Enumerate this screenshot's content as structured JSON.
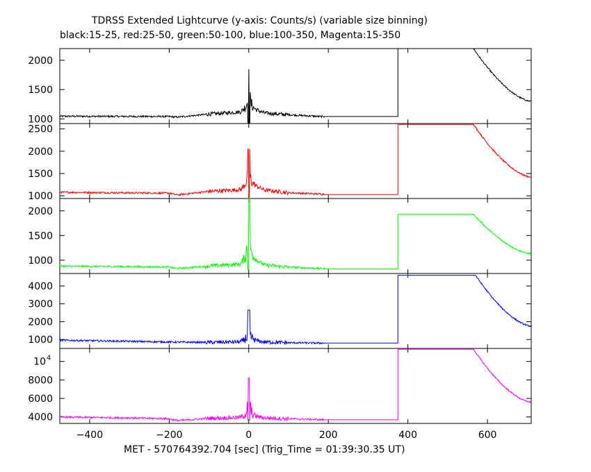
{
  "title": "TDRSS Extended Lightcurve (y-axis: Counts/s) (variable size binning)",
  "subtitle": "black:15-25, red:25-50, green:50-100, blue:100-350, Magenta:15-350",
  "xlabel": "MET - 570764392.704 [sec] (Trig_Time = 01:39:30.35 UT)",
  "chart_data": {
    "type": "line",
    "xlim": [
      -475,
      710
    ],
    "x_ticks": [
      -400,
      -200,
      0,
      200,
      400,
      600
    ],
    "panels": [
      {
        "band": "15-25",
        "color": "#000000",
        "ylim": [
          920,
          2200
        ],
        "y_ticks": [
          {
            "value": 1000,
            "label": "1000"
          },
          {
            "value": 1500,
            "label": "1500"
          },
          {
            "value": 2000,
            "label": "2000"
          }
        ],
        "baseline": [
          [
            -475,
            1045
          ],
          [
            -200,
            1040
          ],
          [
            -180,
            1030
          ],
          [
            -100,
            1080
          ],
          [
            -20,
            1120
          ],
          [
            0,
            1200
          ],
          [
            40,
            1100
          ],
          [
            100,
            1070
          ],
          [
            180,
            1040
          ]
        ],
        "step_level": 1040,
        "step_end": 375,
        "plateau_level": 2200,
        "plateau_end": 565,
        "end_value": 1300,
        "spike": {
          "peak": 1850,
          "min": 920,
          "center": 0
        }
      },
      {
        "band": "25-50",
        "color": "#ff0000",
        "ylim": [
          940,
          2620
        ],
        "y_ticks": [
          {
            "value": 1000,
            "label": "1000"
          },
          {
            "value": 1500,
            "label": "1500"
          },
          {
            "value": 2000,
            "label": "2000"
          },
          {
            "value": 2500,
            "label": "2500"
          }
        ],
        "baseline": [
          [
            -475,
            1080
          ],
          [
            -200,
            1060
          ],
          [
            -180,
            1020
          ],
          [
            -100,
            1100
          ],
          [
            -20,
            1140
          ],
          [
            0,
            1300
          ],
          [
            40,
            1130
          ],
          [
            100,
            1070
          ],
          [
            180,
            1040
          ]
        ],
        "step_level": 1030,
        "step_end": 375,
        "plateau_level": 2600,
        "plateau_end": 565,
        "end_value": 1420,
        "spike": {
          "peak": 2050,
          "min": 950,
          "center": 0
        }
      },
      {
        "band": "50-100",
        "color": "#00ff00",
        "ylim": [
          730,
          2250
        ],
        "y_ticks": [
          {
            "value": 1000,
            "label": "1000"
          },
          {
            "value": 1500,
            "label": "1500"
          },
          {
            "value": 2000,
            "label": "2000"
          }
        ],
        "baseline": [
          [
            -475,
            880
          ],
          [
            -200,
            860
          ],
          [
            -180,
            830
          ],
          [
            -100,
            880
          ],
          [
            -20,
            920
          ],
          [
            0,
            1100
          ],
          [
            40,
            900
          ],
          [
            100,
            860
          ],
          [
            180,
            830
          ]
        ],
        "step_level": 820,
        "step_end": 375,
        "plateau_level": 1930,
        "plateau_end": 565,
        "end_value": 1130,
        "spike": {
          "peak": 2250,
          "min": 800,
          "center": 0
        }
      },
      {
        "band": "100-350",
        "color": "#0000ff",
        "ylim": [
          500,
          4700
        ],
        "y_ticks": [
          {
            "value": 1000,
            "label": "1000"
          },
          {
            "value": 2000,
            "label": "2000"
          },
          {
            "value": 3000,
            "label": "3000"
          },
          {
            "value": 4000,
            "label": "4000"
          }
        ],
        "baseline": [
          [
            -475,
            960
          ],
          [
            -300,
            900
          ],
          [
            -200,
            860
          ],
          [
            -100,
            840
          ],
          [
            -20,
            870
          ],
          [
            0,
            1000
          ],
          [
            40,
            860
          ],
          [
            100,
            820
          ],
          [
            180,
            800
          ]
        ],
        "step_level": 800,
        "step_end": 375,
        "plateau_level": 4600,
        "plateau_end": 570,
        "end_value": 1750,
        "spike": {
          "peak": 2650,
          "min": 780,
          "center": 0
        }
      },
      {
        "band": "15-350",
        "color": "#ff00ff",
        "ylim": [
          3300,
          11400
        ],
        "y_ticks": [
          {
            "value": 4000,
            "label": "4000"
          },
          {
            "value": 6000,
            "label": "6000"
          },
          {
            "value": 8000,
            "label": "8000"
          },
          {
            "value": 10000,
            "label": "10",
            "exponent": "4"
          }
        ],
        "baseline": [
          [
            -475,
            3980
          ],
          [
            -300,
            3900
          ],
          [
            -200,
            3800
          ],
          [
            -180,
            3600
          ],
          [
            -100,
            3850
          ],
          [
            -20,
            3950
          ],
          [
            0,
            4200
          ],
          [
            40,
            3900
          ],
          [
            100,
            3800
          ],
          [
            180,
            3700
          ]
        ],
        "step_level": 3700,
        "step_end": 375,
        "plateau_level": 11300,
        "plateau_end": 565,
        "end_value": 5600,
        "spike": {
          "peak": 8200,
          "min": 3600,
          "center": 0
        }
      }
    ]
  }
}
